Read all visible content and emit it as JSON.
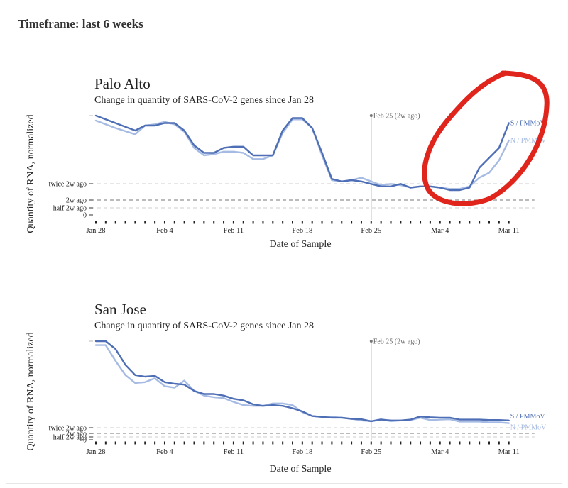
{
  "header": {
    "timeframe": "Timeframe: last 6 weeks"
  },
  "colors": {
    "s_series": "#4e6fb5",
    "n_series": "#a6bbe3",
    "annotation": "#e0251c",
    "reference": "#999999"
  },
  "chart_data": [
    {
      "type": "line",
      "title": "Palo Alto",
      "subtitle": "Change in quantity of SARS-CoV-2 genes since Jan 28",
      "xlabel": "Date of Sample",
      "ylabel": "Quantity of RNA, normalized",
      "x_ticks": [
        "Jan 28",
        "Feb 4",
        "Feb 11",
        "Feb 18",
        "Feb 25",
        "Mar 4",
        "Mar 11"
      ],
      "y_ticks": [
        "twice 2w ago",
        "2w ago",
        "half 2w ago",
        "0"
      ],
      "reference_line": {
        "date": "Feb 25",
        "label": "Feb 25 (2w ago)"
      },
      "grid": false,
      "legend": "line-end labels",
      "x_days_from_jan28": [
        0,
        2,
        4,
        5,
        6,
        7,
        8,
        9,
        10,
        11,
        12,
        13,
        14,
        15,
        16,
        17,
        18,
        19,
        20,
        21,
        22,
        23,
        24,
        25,
        26,
        27,
        28,
        29,
        30,
        31,
        32,
        33,
        34,
        35,
        36,
        37,
        38,
        39,
        40,
        41,
        42
      ],
      "series": [
        {
          "name": "S / PMMoV",
          "values": [
            4.0,
            3.7,
            3.4,
            3.6,
            3.6,
            3.7,
            3.7,
            3.4,
            2.8,
            2.5,
            2.5,
            2.7,
            2.75,
            2.75,
            2.4,
            2.4,
            2.4,
            3.4,
            3.9,
            3.9,
            3.5,
            2.5,
            1.45,
            1.35,
            1.4,
            1.35,
            1.25,
            1.15,
            1.15,
            1.25,
            1.1,
            1.15,
            1.15,
            1.1,
            1.0,
            1.0,
            1.1,
            1.9,
            2.3,
            2.7,
            3.7
          ]
        },
        {
          "name": "N / PMMoV",
          "values": [
            3.8,
            3.5,
            3.25,
            3.6,
            3.65,
            3.75,
            3.65,
            3.35,
            2.7,
            2.4,
            2.45,
            2.55,
            2.55,
            2.5,
            2.25,
            2.25,
            2.4,
            3.3,
            3.85,
            3.85,
            3.5,
            2.4,
            1.4,
            1.35,
            1.4,
            1.5,
            1.35,
            1.2,
            1.25,
            1.2,
            1.1,
            1.15,
            1.15,
            1.1,
            1.05,
            1.05,
            1.15,
            1.5,
            1.7,
            2.2,
            3.0
          ]
        }
      ]
    },
    {
      "type": "line",
      "title": "San Jose",
      "subtitle": "Change in quantity of SARS-CoV-2 genes since Jan 28",
      "xlabel": "Date of Sample",
      "ylabel": "Quantity of RNA, normalized",
      "x_ticks": [
        "Jan 28",
        "Feb 4",
        "Feb 11",
        "Feb 18",
        "Feb 25",
        "Mar 4",
        "Mar 11"
      ],
      "y_ticks": [
        "twice 2w ago",
        "2w ago",
        "half 2w ago",
        "0"
      ],
      "reference_line": {
        "date": "Feb 25",
        "label": "Feb 25 (2w ago)"
      },
      "grid": false,
      "legend": "line-end labels",
      "x_days_from_jan28": [
        0,
        1,
        2,
        3,
        4,
        5,
        6,
        7,
        8,
        9,
        10,
        11,
        12,
        13,
        14,
        15,
        16,
        17,
        18,
        19,
        20,
        21,
        22,
        23,
        24,
        25,
        26,
        27,
        28,
        29,
        30,
        31,
        32,
        33,
        34,
        35,
        36,
        37,
        38,
        39,
        40,
        41,
        42
      ],
      "series": [
        {
          "name": "S / PMMoV",
          "values": [
            12.5,
            12.5,
            11.5,
            9.5,
            8.2,
            8.0,
            8.1,
            7.3,
            7.1,
            7.0,
            6.2,
            5.8,
            5.8,
            5.6,
            5.2,
            5.0,
            4.5,
            4.3,
            4.4,
            4.3,
            4.0,
            3.6,
            3.0,
            2.9,
            2.8,
            2.8,
            2.65,
            2.6,
            2.35,
            2.55,
            2.45,
            2.45,
            2.55,
            2.95,
            2.85,
            2.8,
            2.8,
            2.55,
            2.55,
            2.55,
            2.5,
            2.5,
            2.45
          ]
        },
        {
          "name": "N / PMMoV",
          "values": [
            12.0,
            12.0,
            10.0,
            8.2,
            7.2,
            7.3,
            7.8,
            6.8,
            6.6,
            7.5,
            6.2,
            5.6,
            5.4,
            5.3,
            4.8,
            4.4,
            4.3,
            4.3,
            4.6,
            4.6,
            4.4,
            3.5,
            3.0,
            2.9,
            2.9,
            2.8,
            2.65,
            2.45,
            2.35,
            2.6,
            2.35,
            2.45,
            2.5,
            2.8,
            2.5,
            2.55,
            2.6,
            2.3,
            2.3,
            2.3,
            2.2,
            2.2,
            2.1
          ]
        }
      ]
    }
  ]
}
